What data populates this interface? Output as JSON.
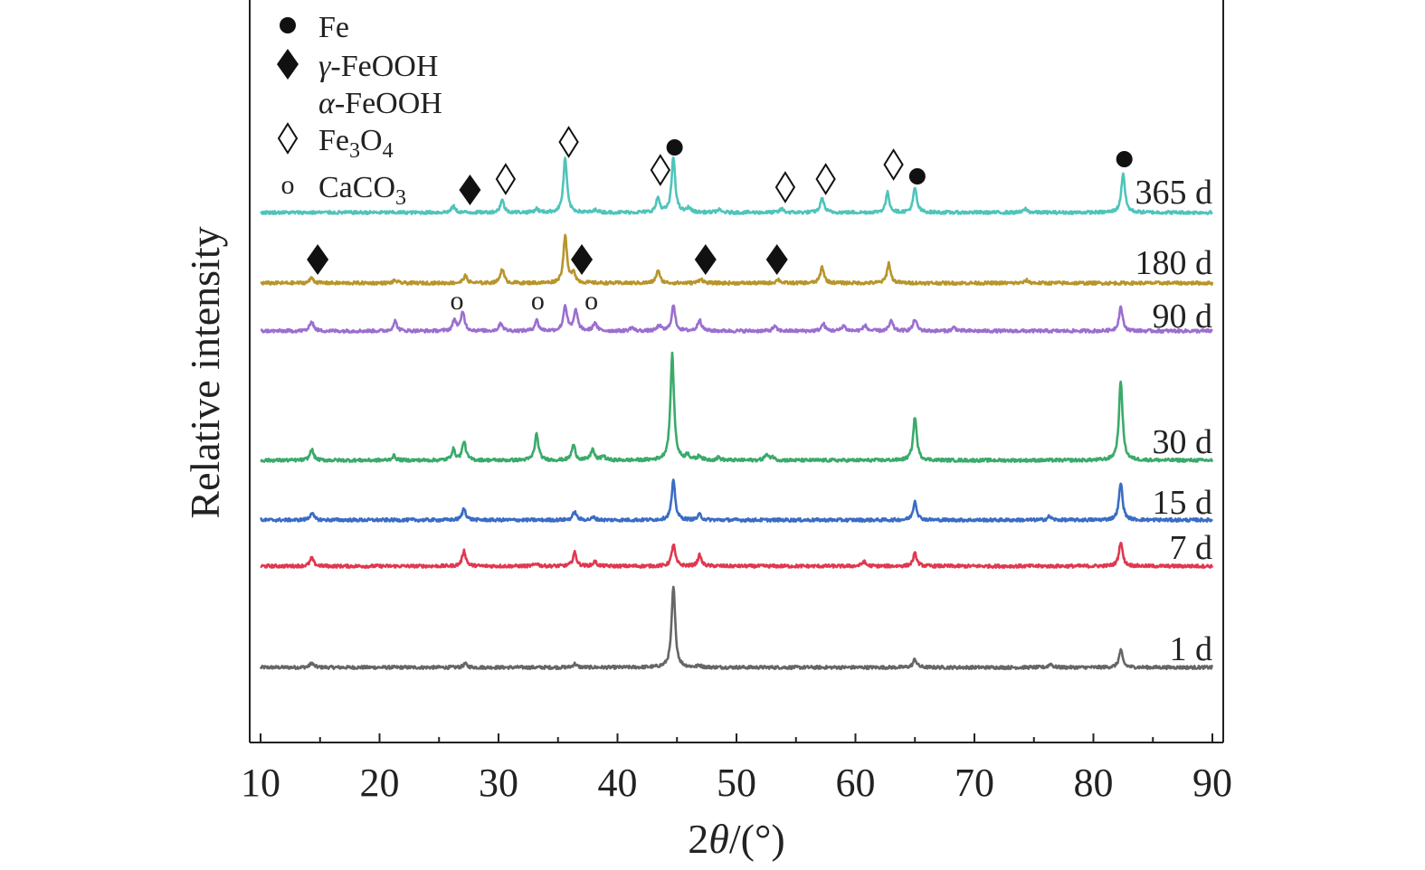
{
  "chart_data": {
    "type": "line",
    "title": "",
    "xlabel_prefix": "2",
    "xlabel_symbol": "θ",
    "xlabel_suffix": "/(°)",
    "ylabel": "Relative intensity",
    "xlim": [
      10,
      90
    ],
    "xticks": [
      10,
      20,
      30,
      40,
      50,
      60,
      70,
      80,
      90
    ],
    "legend": {
      "placement": "top-left",
      "entries": [
        {
          "marker": "filled-circle",
          "label": "Fe"
        },
        {
          "marker": "filled-diamond",
          "label": "γ-FeOOH"
        },
        {
          "marker": "none",
          "label": "α-FeOOH"
        },
        {
          "marker": "open-diamond",
          "label_base": "Fe",
          "sub1": "3",
          "mid": "O",
          "sub2": "4"
        },
        {
          "marker": "small-circle",
          "label_base": "CaCO",
          "sub1": "3"
        }
      ]
    },
    "series": [
      {
        "name": "1 d",
        "color": "#666666",
        "peaks": [
          [
            14.3,
            0.5
          ],
          [
            27.2,
            0.4
          ],
          [
            36.4,
            0.4
          ],
          [
            44.7,
            8.9
          ],
          [
            46.9,
            0.2
          ],
          [
            65.0,
            0.9
          ],
          [
            76.4,
            0.4
          ],
          [
            82.3,
            1.9
          ]
        ]
      },
      {
        "name": "7 d",
        "color": "#e0384f",
        "peaks": [
          [
            14.3,
            0.9
          ],
          [
            27.1,
            1.7
          ],
          [
            33.2,
            0.3
          ],
          [
            36.4,
            1.5
          ],
          [
            38.1,
            0.5
          ],
          [
            44.7,
            2.4
          ],
          [
            46.9,
            1.2
          ],
          [
            60.7,
            0.5
          ],
          [
            65.0,
            1.4
          ],
          [
            82.3,
            2.7
          ]
        ]
      },
      {
        "name": "15 d",
        "color": "#3a6cc4",
        "peaks": [
          [
            14.3,
            0.8
          ],
          [
            27.1,
            1.3
          ],
          [
            36.4,
            0.9
          ],
          [
            38.0,
            0.3
          ],
          [
            44.7,
            4.3
          ],
          [
            46.9,
            0.6
          ],
          [
            65.0,
            2.1
          ],
          [
            76.3,
            0.4
          ],
          [
            82.3,
            4.1
          ]
        ]
      },
      {
        "name": "30 d",
        "color": "#3aaa6a",
        "peaks": [
          [
            14.3,
            1.2
          ],
          [
            21.2,
            0.5
          ],
          [
            26.2,
            1.2
          ],
          [
            27.1,
            2.1
          ],
          [
            33.2,
            2.9
          ],
          [
            36.3,
            1.7
          ],
          [
            37.9,
            1.2
          ],
          [
            38.8,
            0.5
          ],
          [
            44.6,
            11.7
          ],
          [
            45.9,
            0.6
          ],
          [
            46.9,
            0.5
          ],
          [
            48.5,
            0.3
          ],
          [
            52.5,
            0.6
          ],
          [
            53.0,
            0.4
          ],
          [
            65.0,
            4.8
          ],
          [
            82.3,
            8.8
          ]
        ]
      },
      {
        "name": "90 d",
        "color": "#9b6ed0",
        "peaks": [
          [
            14.3,
            1.1
          ],
          [
            21.3,
            1.1
          ],
          [
            26.3,
            1.2
          ],
          [
            27.0,
            2.1
          ],
          [
            30.2,
            0.9
          ],
          [
            33.2,
            1.2
          ],
          [
            35.6,
            2.8
          ],
          [
            36.5,
            2.3
          ],
          [
            38.1,
            0.9
          ],
          [
            41.2,
            0.4
          ],
          [
            43.5,
            0.6
          ],
          [
            44.7,
            2.8
          ],
          [
            46.9,
            1.3
          ],
          [
            53.2,
            0.5
          ],
          [
            57.3,
            0.8
          ],
          [
            59.0,
            0.6
          ],
          [
            60.8,
            0.6
          ],
          [
            63.0,
            1.1
          ],
          [
            65.0,
            1.3
          ],
          [
            68.3,
            0.4
          ],
          [
            82.3,
            2.7
          ]
        ]
      },
      {
        "name": "180 d",
        "color": "#b8952a",
        "peaks": [
          [
            14.3,
            0.6
          ],
          [
            21.3,
            0.3
          ],
          [
            27.2,
            0.8
          ],
          [
            30.3,
            1.6
          ],
          [
            35.6,
            5.2
          ],
          [
            36.3,
            1.2
          ],
          [
            43.4,
            1.4
          ],
          [
            47.0,
            0.5
          ],
          [
            53.5,
            0.4
          ],
          [
            57.2,
            1.8
          ],
          [
            62.8,
            2.2
          ],
          [
            74.4,
            0.3
          ]
        ]
      },
      {
        "name": "365 d",
        "color": "#4fc4bb",
        "peaks": [
          [
            26.2,
            0.7
          ],
          [
            30.3,
            1.4
          ],
          [
            33.2,
            0.4
          ],
          [
            35.6,
            6.0
          ],
          [
            38.2,
            0.3
          ],
          [
            43.4,
            1.6
          ],
          [
            44.7,
            6.1
          ],
          [
            46.0,
            0.5
          ],
          [
            48.5,
            0.3
          ],
          [
            53.8,
            0.4
          ],
          [
            57.2,
            1.6
          ],
          [
            62.7,
            2.2
          ],
          [
            65.0,
            2.7
          ],
          [
            74.3,
            0.4
          ],
          [
            82.5,
            4.4
          ]
        ]
      }
    ],
    "phase_markers": [
      {
        "series": "365 d",
        "type": "filled-diamond",
        "x": 27.6
      },
      {
        "series": "365 d",
        "type": "open-diamond",
        "x": 30.6
      },
      {
        "series": "365 d",
        "type": "open-diamond",
        "x": 35.9
      },
      {
        "series": "365 d",
        "type": "open-diamond",
        "x": 43.6
      },
      {
        "series": "365 d",
        "type": "filled-circle",
        "x": 44.8
      },
      {
        "series": "365 d",
        "type": "open-diamond",
        "x": 54.1
      },
      {
        "series": "365 d",
        "type": "open-diamond",
        "x": 57.5
      },
      {
        "series": "365 d",
        "type": "open-diamond",
        "x": 63.2
      },
      {
        "series": "365 d",
        "type": "filled-circle",
        "x": 65.2
      },
      {
        "series": "365 d",
        "type": "filled-circle",
        "x": 82.6
      },
      {
        "series": "180 d",
        "type": "filled-diamond",
        "x": 14.8
      },
      {
        "series": "180 d",
        "type": "filled-diamond",
        "x": 37.0
      },
      {
        "series": "180 d",
        "type": "filled-diamond",
        "x": 47.4
      },
      {
        "series": "180 d",
        "type": "filled-diamond",
        "x": 53.4
      },
      {
        "series": "90 d",
        "type": "small-circle",
        "x": 26.5
      },
      {
        "series": "90 d",
        "type": "small-circle",
        "x": 33.3
      },
      {
        "series": "90 d",
        "type": "small-circle",
        "x": 37.8
      }
    ]
  }
}
